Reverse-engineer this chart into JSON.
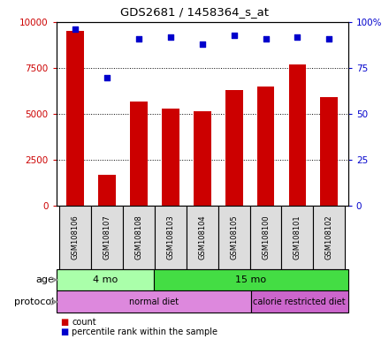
{
  "title": "GDS2681 / 1458364_s_at",
  "samples": [
    "GSM108106",
    "GSM108107",
    "GSM108108",
    "GSM108103",
    "GSM108104",
    "GSM108105",
    "GSM108100",
    "GSM108101",
    "GSM108102"
  ],
  "counts": [
    9500,
    1700,
    5700,
    5300,
    5150,
    6300,
    6500,
    7700,
    5900
  ],
  "percentiles": [
    96,
    70,
    91,
    92,
    88,
    93,
    91,
    92,
    91
  ],
  "bar_color": "#cc0000",
  "dot_color": "#0000cc",
  "ylim_left": [
    0,
    10000
  ],
  "ylim_right": [
    0,
    100
  ],
  "yticks_left": [
    0,
    2500,
    5000,
    7500,
    10000
  ],
  "ytick_labels_left": [
    "0",
    "2500",
    "5000",
    "7500",
    "10000"
  ],
  "yticks_right": [
    0,
    25,
    50,
    75,
    100
  ],
  "ytick_labels_right": [
    "0",
    "25",
    "50",
    "75",
    "100%"
  ],
  "age_groups": [
    {
      "label": "4 mo",
      "start": 0,
      "end": 3,
      "color": "#aaffaa"
    },
    {
      "label": "15 mo",
      "start": 3,
      "end": 9,
      "color": "#44dd44"
    }
  ],
  "protocol_groups": [
    {
      "label": "normal diet",
      "start": 0,
      "end": 6,
      "color": "#dd88dd"
    },
    {
      "label": "calorie restricted diet",
      "start": 6,
      "end": 9,
      "color": "#cc66cc"
    }
  ],
  "legend_items": [
    {
      "color": "#cc0000",
      "label": "count"
    },
    {
      "color": "#0000cc",
      "label": "percentile rank within the sample"
    }
  ],
  "background_color": "#ffffff",
  "tick_label_color_left": "#cc0000",
  "tick_label_color_right": "#0000cc",
  "sample_box_color": "#dddddd",
  "arrow_color": "#888888"
}
